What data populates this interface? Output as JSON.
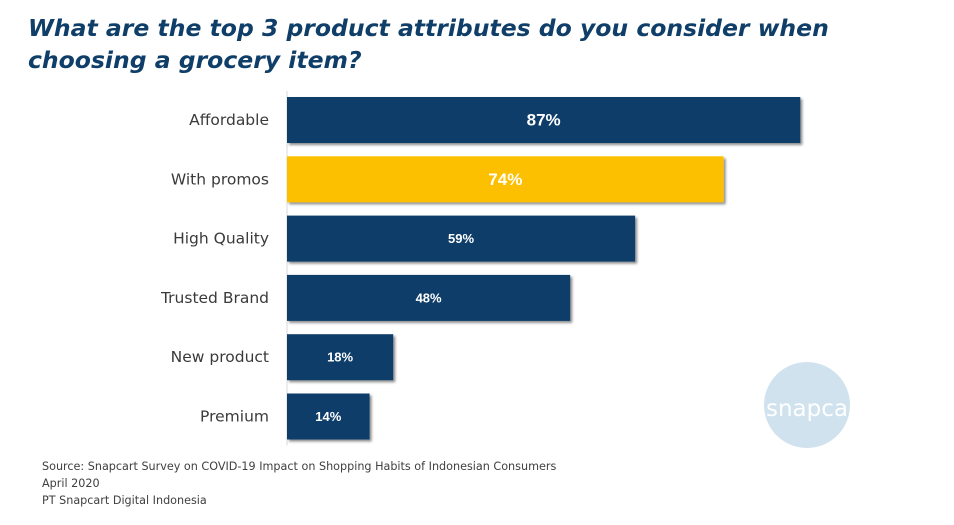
{
  "chart_data": {
    "type": "bar",
    "orientation": "horizontal",
    "title": "What are the top 3 product attributes do you consider when choosing a grocery item?",
    "categories": [
      "Affordable",
      "With promos",
      "High Quality",
      "Trusted Brand",
      "New product",
      "Premium"
    ],
    "values": [
      87,
      74,
      59,
      48,
      18,
      14
    ],
    "value_labels": [
      "87%",
      "74%",
      "59%",
      "48%",
      "18%",
      "14%"
    ],
    "value_unit": "%",
    "xlim": [
      0,
      100
    ],
    "grid": false,
    "legend": "none",
    "colors": {
      "default": "#0f3e68",
      "highlight": "#fdc000",
      "highlight_category": "With promos"
    }
  },
  "source": {
    "line1": "Source: Snapcart Survey on COVID-19 Impact on Shopping Habits of Indonesian Consumers",
    "line2": "April 2020",
    "line3": "PT Snapcart Digital Indonesia"
  },
  "logo": {
    "text": "snapcart",
    "color": "#cfe2ee"
  }
}
